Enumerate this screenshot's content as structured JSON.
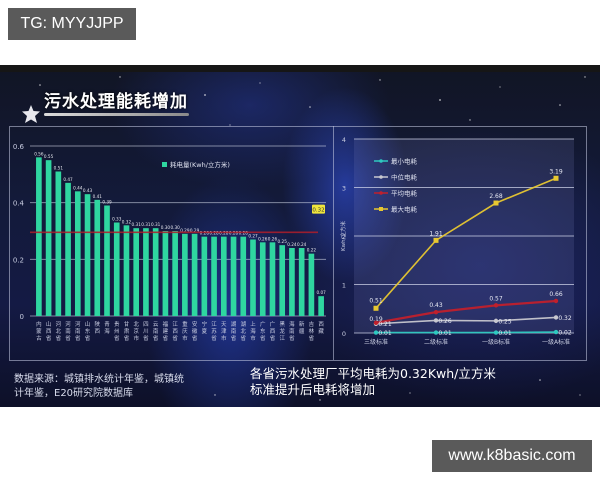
{
  "overlay": {
    "top_tag": "TG: MYYJJPP",
    "bottom_tag": "www.k8basic.com"
  },
  "poster": {
    "title": "污水处理能耗增加",
    "source_line1": "数据来源：城镇排水统计年鉴，城镇统",
    "source_line2": "计年鉴，E20研究院数据库",
    "note_line1": "各省污水处理厂平均电耗为0.32Kwh/立方米",
    "note_line2": "标准提升后电耗将增加"
  },
  "chart_data": [
    {
      "type": "bar",
      "title": "",
      "legend": [
        "耗电量(Kwh/立方米)"
      ],
      "legend_position": "top-right",
      "xlabel": "",
      "ylabel": "",
      "ylim": [
        0,
        0.6
      ],
      "yticks": [
        "0",
        "0.2",
        "0.4",
        "0.6"
      ],
      "grid": true,
      "bar_color": "#2fd6a0",
      "categories": [
        "内蒙古",
        "山西省",
        "河北省",
        "河南省",
        "河南省",
        "山东省",
        "陕西",
        "青海",
        "贵州省",
        "甘肃省",
        "北京市",
        "四川省",
        "云南省",
        "福建省",
        "江西省",
        "重庆市",
        "安徽省",
        "宁夏",
        "江苏省",
        "天津市",
        "湖南省",
        "湖北省",
        "上海市",
        "广东省",
        "广西省",
        "黑龙江省",
        "海南省",
        "新疆",
        "吉林省",
        "西藏"
      ],
      "values": [
        0.56,
        0.55,
        0.51,
        0.47,
        0.44,
        0.43,
        0.41,
        0.39,
        0.33,
        0.32,
        0.31,
        0.31,
        0.31,
        0.3,
        0.3,
        0.29,
        0.29,
        0.28,
        0.28,
        0.28,
        0.28,
        0.28,
        0.27,
        0.26,
        0.26,
        0.25,
        0.24,
        0.24,
        0.22,
        0.07
      ],
      "reference_line": {
        "label": "0.32",
        "value": 0.32,
        "color": "#b01e2a"
      },
      "value_labels": [
        "0.56",
        "0.55",
        "0.51",
        "0.47",
        "0.44",
        "0.43",
        "0.41",
        "0.39",
        "0.33",
        "0.32",
        "0.31",
        "0.31",
        "0.31",
        "0.30",
        "0.30",
        "0.29",
        "0.29",
        "0.28",
        "0.28",
        "0.28",
        "0.28",
        "0.28",
        "0.27",
        "0.26",
        "0.26",
        "0.25",
        "0.24",
        "0.24",
        "0.22",
        "0.07"
      ]
    },
    {
      "type": "line",
      "title": "",
      "ylabel": "Kwh/立方米",
      "xlabel": "",
      "ylim": [
        0,
        4
      ],
      "yticks": [
        "0",
        "1",
        "2",
        "3",
        "4"
      ],
      "grid": true,
      "legend_position": "top-left",
      "categories": [
        "三级标准",
        "二级标准",
        "一级B标准",
        "一级A标准"
      ],
      "series": [
        {
          "name": "最小电耗",
          "color": "#2ec9c0",
          "values": [
            0.01,
            0.01,
            0.01,
            0.02
          ],
          "labels": [
            "0.01",
            "0.01",
            "0.01",
            "0.02"
          ]
        },
        {
          "name": "中位电耗",
          "color": "#c8c8d0",
          "values": [
            0.19,
            0.26,
            0.25,
            0.32
          ],
          "labels": [
            "0.19",
            "0.26",
            "0.25",
            "0.32"
          ]
        },
        {
          "name": "平均电耗",
          "color": "#c0202c",
          "values": [
            0.21,
            0.43,
            0.57,
            0.66
          ],
          "labels": [
            "0.21",
            "0.43",
            "0.57",
            "0.66"
          ]
        },
        {
          "name": "最大电耗",
          "color": "#e8c830",
          "values": [
            0.51,
            1.91,
            2.68,
            3.19
          ],
          "labels": [
            "0.51",
            "1.91",
            "2.68",
            "3.19"
          ]
        }
      ]
    }
  ]
}
